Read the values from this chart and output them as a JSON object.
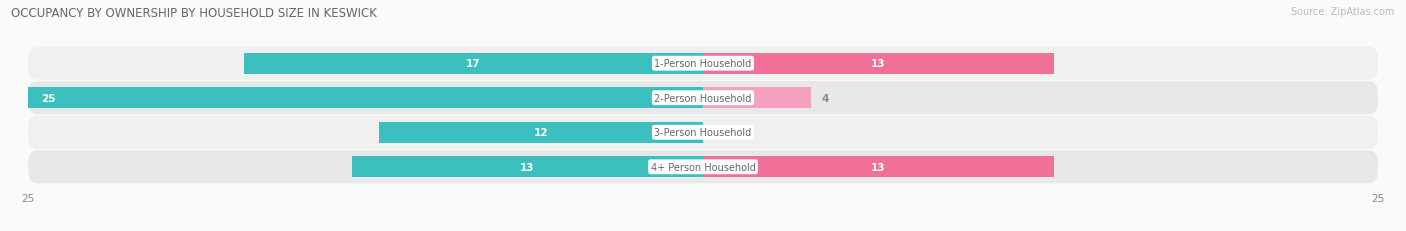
{
  "title": "OCCUPANCY BY OWNERSHIP BY HOUSEHOLD SIZE IN KESWICK",
  "source": "Source: ZipAtlas.com",
  "categories": [
    "1-Person Household",
    "2-Person Household",
    "3-Person Household",
    "4+ Person Household"
  ],
  "owner_values": [
    17,
    25,
    12,
    13
  ],
  "renter_values": [
    13,
    4,
    0,
    13
  ],
  "owner_color": "#3BBFBF",
  "renter_color": "#F07098",
  "renter_color_light": "#F5A0C0",
  "row_bg_colors": [
    "#F0F0F0",
    "#E8E8E8",
    "#F0F0F0",
    "#E8E8E8"
  ],
  "max_val": 25,
  "title_fontsize": 8.5,
  "cat_fontsize": 7.0,
  "tick_fontsize": 7.5,
  "legend_fontsize": 7.5,
  "source_fontsize": 7,
  "val_fontsize": 7.5,
  "figsize": [
    14.06,
    2.32
  ],
  "dpi": 100,
  "title_color": "#666666",
  "value_color_inside": "#FFFFFF",
  "value_color_outside": "#888888",
  "label_text_color": "#666666"
}
